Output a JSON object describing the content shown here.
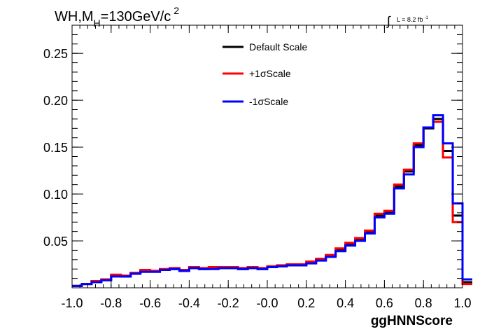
{
  "chart_data": {
    "type": "line",
    "title_main": "WH,M",
    "title_sub": "H",
    "title_rest": "=130GeV/c",
    "title_sup": "2",
    "lumi_symbol": "∫",
    "lumi_text": "L = 8.2 fb",
    "lumi_sup": "-1",
    "xlabel": "ggHNNScore",
    "ylabel": "",
    "xlim": [
      -1.0,
      1.0
    ],
    "ylim": [
      0.0,
      0.28
    ],
    "x_ticks": [
      "-1.0",
      "-0.8",
      "-0.6",
      "-0.4",
      "-0.2",
      "-0.0",
      "0.2",
      "0.4",
      "0.6",
      "0.8",
      "1.0"
    ],
    "y_ticks": [
      "0.05",
      "0.10",
      "0.15",
      "0.20",
      "0.25"
    ],
    "y_tick_values": [
      0.05,
      0.1,
      0.15,
      0.2,
      0.25
    ],
    "bin_edges": [
      -1.0,
      0.95
    ],
    "bin_width": 0.05,
    "legend_position": "top-center",
    "series": [
      {
        "name": "Default Scale",
        "color": "#000000",
        "values": [
          0.002,
          0.004,
          0.007,
          0.009,
          0.013,
          0.012,
          0.015,
          0.018,
          0.018,
          0.019,
          0.02,
          0.018,
          0.021,
          0.02,
          0.021,
          0.021,
          0.021,
          0.02,
          0.021,
          0.02,
          0.022,
          0.023,
          0.024,
          0.024,
          0.027,
          0.03,
          0.034,
          0.04,
          0.046,
          0.051,
          0.059,
          0.077,
          0.08,
          0.108,
          0.124,
          0.152,
          0.17,
          0.18,
          0.146,
          0.077,
          0.006
        ]
      },
      {
        "name": "+1σScale",
        "color": "#ff0000",
        "values": [
          0.002,
          0.004,
          0.007,
          0.009,
          0.014,
          0.013,
          0.016,
          0.019,
          0.018,
          0.02,
          0.021,
          0.019,
          0.022,
          0.021,
          0.022,
          0.022,
          0.022,
          0.021,
          0.022,
          0.021,
          0.023,
          0.024,
          0.025,
          0.025,
          0.028,
          0.031,
          0.035,
          0.042,
          0.048,
          0.053,
          0.061,
          0.079,
          0.082,
          0.11,
          0.126,
          0.154,
          0.171,
          0.177,
          0.139,
          0.07,
          0.004
        ]
      },
      {
        "name": "-1σScale",
        "color": "#0000ff",
        "values": [
          0.002,
          0.004,
          0.006,
          0.008,
          0.012,
          0.012,
          0.015,
          0.017,
          0.017,
          0.019,
          0.02,
          0.018,
          0.021,
          0.02,
          0.02,
          0.021,
          0.021,
          0.02,
          0.021,
          0.02,
          0.022,
          0.023,
          0.024,
          0.024,
          0.026,
          0.029,
          0.033,
          0.039,
          0.045,
          0.05,
          0.058,
          0.075,
          0.079,
          0.106,
          0.121,
          0.15,
          0.171,
          0.184,
          0.154,
          0.09,
          0.009
        ]
      }
    ]
  }
}
